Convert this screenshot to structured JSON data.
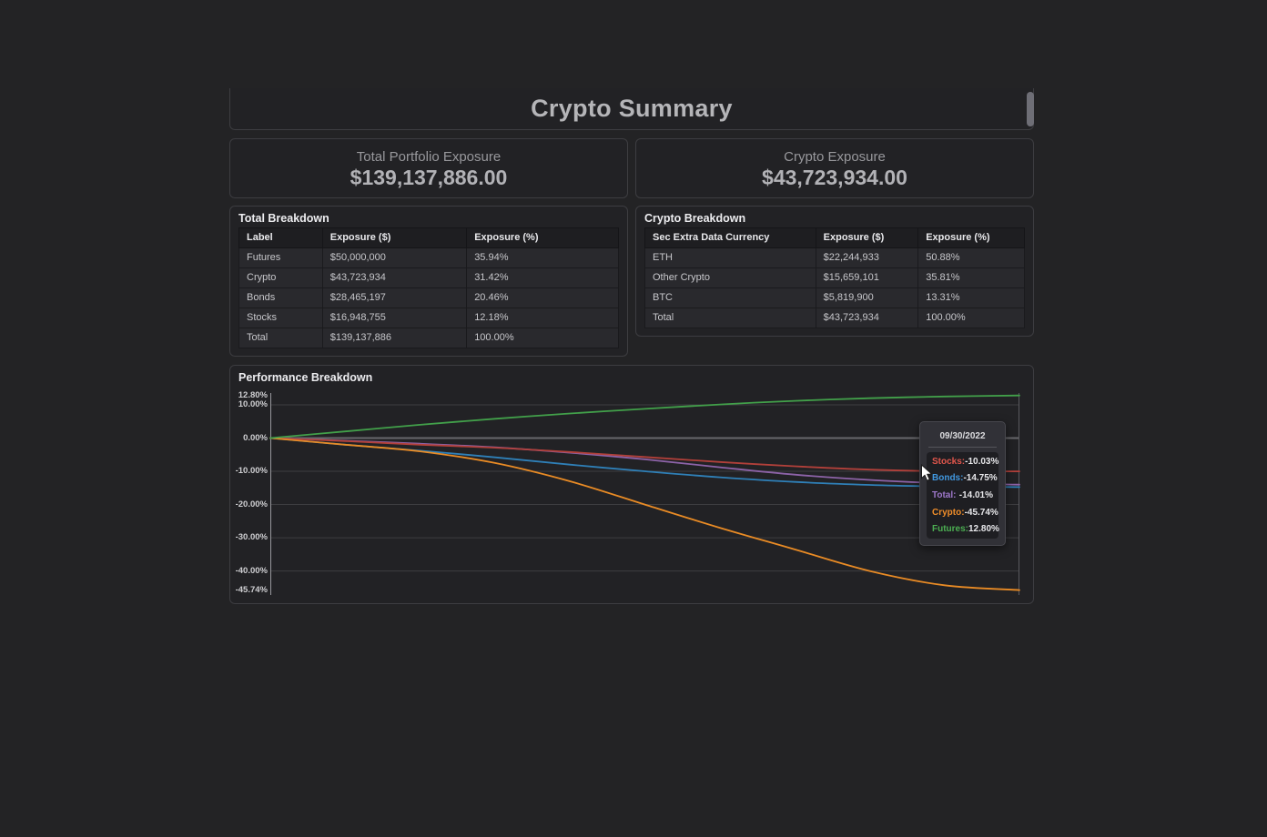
{
  "title": "Crypto Summary",
  "summary_cards": [
    {
      "label": "Total Portfolio Exposure",
      "value": "$139,137,886.00"
    },
    {
      "label": "Crypto Exposure",
      "value": "$43,723,934.00"
    }
  ],
  "total_breakdown": {
    "title": "Total Breakdown",
    "columns": [
      "Label",
      "Exposure ($)",
      "Exposure (%)"
    ],
    "rows": [
      [
        "Futures",
        "$50,000,000",
        "35.94%"
      ],
      [
        "Crypto",
        "$43,723,934",
        "31.42%"
      ],
      [
        "Bonds",
        "$28,465,197",
        "20.46%"
      ],
      [
        "Stocks",
        "$16,948,755",
        "12.18%"
      ],
      [
        "Total",
        "$139,137,886",
        "100.00%"
      ]
    ]
  },
  "crypto_breakdown": {
    "title": "Crypto Breakdown",
    "columns": [
      "Sec Extra Data Currency",
      "Exposure ($)",
      "Exposure (%)"
    ],
    "rows": [
      [
        "ETH",
        "$22,244,933",
        "50.88%"
      ],
      [
        "Other Crypto",
        "$15,659,101",
        "35.81%"
      ],
      [
        "BTC",
        "$5,819,900",
        "13.31%"
      ],
      [
        "Total",
        "$43,723,934",
        "100.00%"
      ]
    ]
  },
  "performance": {
    "title": "Performance Breakdown",
    "tooltip": {
      "date": "09/30/2022",
      "rows": [
        {
          "label": "Stocks:",
          "value": "-10.03%",
          "color": "#e1564c"
        },
        {
          "label": "Bonds:",
          "value": "-14.75%",
          "color": "#4198e0"
        },
        {
          "label": "Total:",
          "value": "-14.01%",
          "color": "#9f78cb"
        },
        {
          "label": "Crypto:",
          "value": "-45.74%",
          "color": "#ef8d2a"
        },
        {
          "label": "Futures:",
          "value": "12.80%",
          "color": "#4cae52"
        }
      ]
    }
  },
  "chart_data": {
    "type": "line",
    "title": "Performance Breakdown",
    "xlabel": "",
    "ylabel": "",
    "ylim": [
      -45.74,
      12.8
    ],
    "grid": true,
    "hover_date": "09/30/2022",
    "yticks": [
      {
        "value": 12.8,
        "label": "12.80%"
      },
      {
        "value": 10.0,
        "label": "10.00%"
      },
      {
        "value": 0.0,
        "label": "0.00%"
      },
      {
        "value": -10.0,
        "label": "-10.00%"
      },
      {
        "value": -20.0,
        "label": "-20.00%"
      },
      {
        "value": -30.0,
        "label": "-30.00%"
      },
      {
        "value": -40.0,
        "label": "-40.00%"
      },
      {
        "value": -45.74,
        "label": "-45.74%"
      }
    ],
    "gridline_values": [
      10,
      0,
      -10,
      -20,
      -30,
      -40
    ],
    "x_normalized": [
      0,
      0.1,
      0.2,
      0.3,
      0.4,
      0.5,
      0.6,
      0.7,
      0.8,
      0.9,
      1.0
    ],
    "series": [
      {
        "name": "Bonds",
        "color": "#2f80b8",
        "final_pct": -14.75,
        "values": [
          0,
          -2.0,
          -3.8,
          -5.8,
          -8.0,
          -10.0,
          -11.8,
          -13.2,
          -14.1,
          -14.6,
          -14.75
        ]
      },
      {
        "name": "Total",
        "color": "#8d63a8",
        "final_pct": -14.01,
        "values": [
          0,
          -0.8,
          -1.7,
          -2.8,
          -4.4,
          -6.4,
          -8.8,
          -11.0,
          -12.6,
          -13.6,
          -14.01
        ]
      },
      {
        "name": "Stocks",
        "color": "#b2403a",
        "final_pct": -10.03,
        "values": [
          0,
          -0.9,
          -2.0,
          -2.9,
          -4.2,
          -5.7,
          -7.2,
          -8.5,
          -9.5,
          -10.0,
          -10.03
        ]
      },
      {
        "name": "Crypto",
        "color": "#e98b25",
        "final_pct": -45.74,
        "values": [
          0,
          -2.0,
          -4.0,
          -7.5,
          -13.0,
          -20.0,
          -27.0,
          -33.5,
          -40.0,
          -44.3,
          -45.74
        ]
      },
      {
        "name": "Futures",
        "color": "#42a04a",
        "final_pct": 12.8,
        "values": [
          0,
          2.0,
          4.0,
          5.8,
          7.4,
          8.8,
          10.1,
          11.2,
          12.0,
          12.5,
          12.8
        ]
      }
    ]
  }
}
